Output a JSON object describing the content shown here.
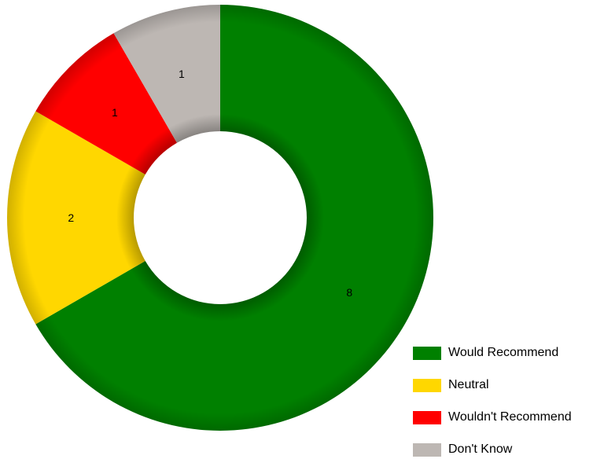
{
  "chart_data": {
    "type": "pie",
    "variant": "donut",
    "title": "",
    "slices": [
      {
        "label": "Would Recommend",
        "value": 8,
        "color": "#008000"
      },
      {
        "label": "Neutral",
        "value": 2,
        "color": "#FFD700"
      },
      {
        "label": "Wouldn't Recommend",
        "value": 1,
        "color": "#FF0000"
      },
      {
        "label": "Don't Know",
        "value": 1,
        "color": "#BDB7B3"
      }
    ],
    "legend": {
      "position": "bottom-right"
    }
  }
}
